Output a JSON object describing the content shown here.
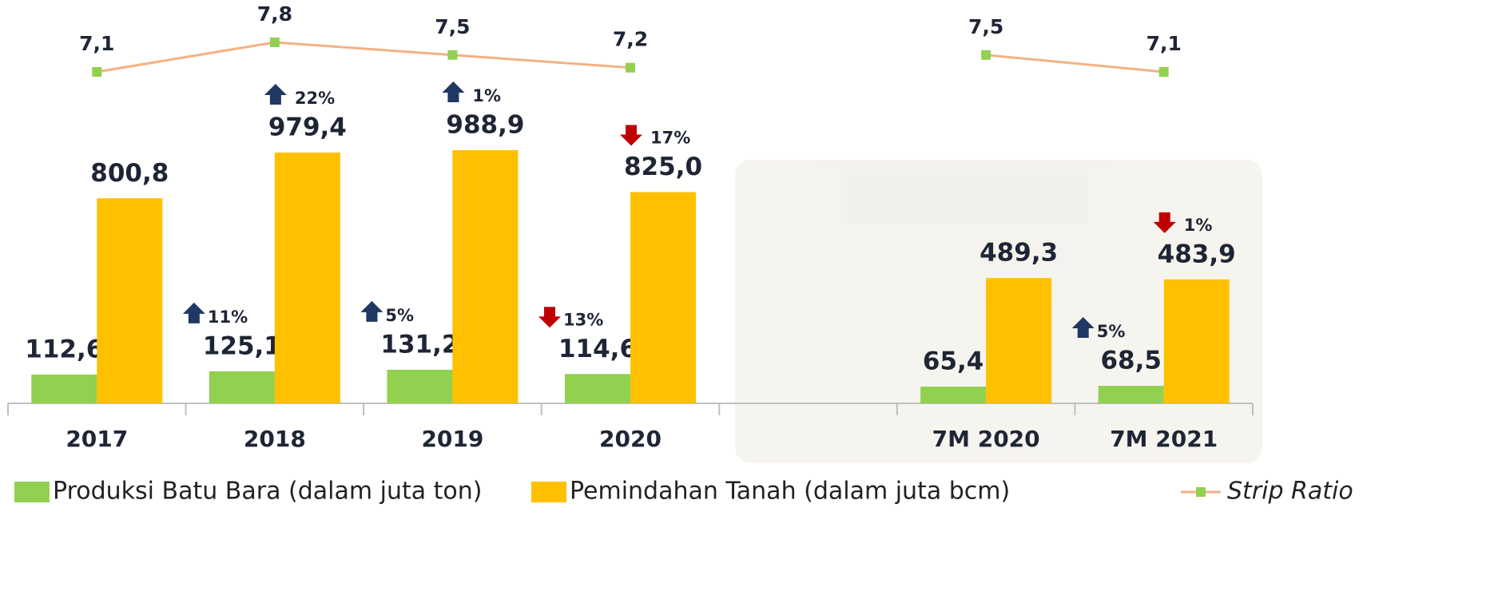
{
  "chart_data": {
    "type": "bar",
    "categories": [
      "2017",
      "2018",
      "2019",
      "2020",
      null,
      "7M 2020",
      "7M 2021"
    ],
    "series": [
      {
        "name": "Produksi Batu Bara (dalam juta ton)",
        "color": "#92d050",
        "values": [
          112.6,
          125.1,
          131.2,
          114.6,
          null,
          65.4,
          68.5
        ],
        "value_labels": [
          "112,6",
          "125,1",
          "131,2",
          "114,6",
          null,
          "65,4",
          "68,5"
        ],
        "changes": [
          null,
          11,
          5,
          -13,
          null,
          null,
          5
        ],
        "change_labels": [
          null,
          "11%",
          "5%",
          "13%",
          null,
          null,
          "5%"
        ]
      },
      {
        "name": "Pemindahan Tanah (dalam juta bcm)",
        "color": "#ffc000",
        "values": [
          800.8,
          979.4,
          988.9,
          825.0,
          null,
          489.3,
          483.9
        ],
        "value_labels": [
          "800,8",
          "979,4",
          "988,9",
          "825,0",
          null,
          "489,3",
          "483,9"
        ],
        "changes": [
          null,
          22,
          1,
          -17,
          null,
          null,
          -1
        ],
        "change_labels": [
          null,
          "22%",
          "1%",
          "17%",
          null,
          null,
          "1%"
        ]
      },
      {
        "name": "Strip Ratio",
        "type": "line",
        "axis": "y2",
        "color": "#f4b183",
        "marker_color": "#92d050",
        "values": [
          7.1,
          7.8,
          7.5,
          7.2,
          null,
          7.5,
          7.1
        ],
        "value_labels": [
          "7,1",
          "7,8",
          "7,5",
          "7,2",
          null,
          "7,5",
          "7,1"
        ]
      }
    ],
    "up_color": "#1f3864",
    "down_color": "#c00000",
    "ylim": [
      0,
      1000
    ],
    "y2lim": [
      7,
      8
    ]
  }
}
